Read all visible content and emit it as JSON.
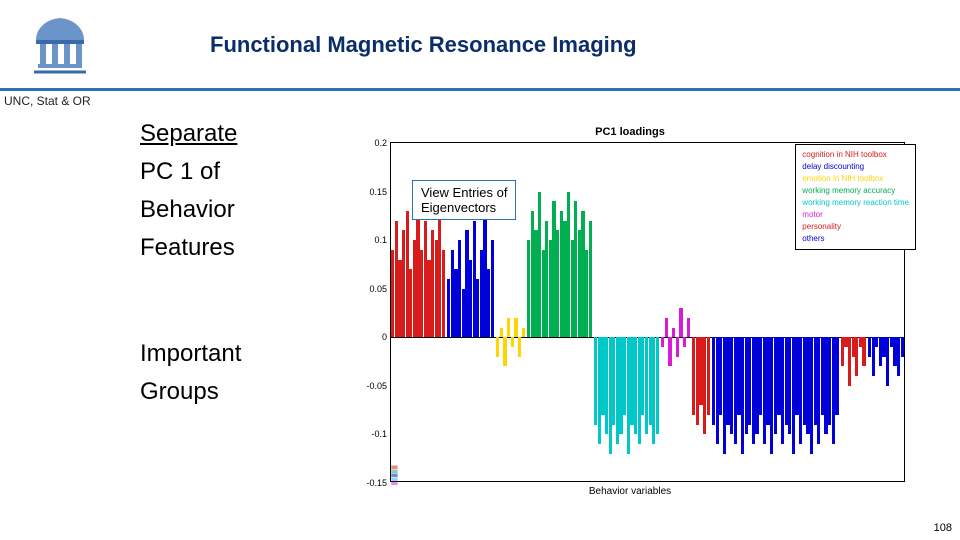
{
  "header": {
    "title": "Functional Magnetic Resonance Imaging",
    "subhead": "UNC, Stat & OR",
    "title_color": "#0b2e6b",
    "rule_color": "#2a6fb8"
  },
  "left_text": {
    "l1": "Separate",
    "l2": "PC 1 of",
    "l3": "Behavior",
    "l4": "Features",
    "l5": "Important",
    "l6": "Groups"
  },
  "chart": {
    "type": "bar",
    "title": "PC1 loadings",
    "xlabel": "Behavior variables",
    "ylim": [
      -0.15,
      0.2
    ],
    "yticks": [
      0.2,
      0.15,
      0.1,
      0.05,
      0,
      -0.05,
      -0.1,
      -0.15
    ],
    "background_color": "#ffffff",
    "grid_color": "#000000",
    "annotation": {
      "line1": "View Entries of",
      "line2": "Eigenvectors"
    },
    "legend": [
      {
        "label": "cognition in NIH toolbox",
        "color": "#d81b1b"
      },
      {
        "label": "delay discounting",
        "color": "#0000d8"
      },
      {
        "label": "emotion in NIH toolbox",
        "color": "#ffd400"
      },
      {
        "label": "working memory accuracy",
        "color": "#00b050"
      },
      {
        "label": "working memory reaction time",
        "color": "#00c8c8"
      },
      {
        "label": "motor",
        "color": "#d81bd8"
      },
      {
        "label": "personality",
        "color": "#d81b1b"
      },
      {
        "label": "others",
        "color": "#0000d8"
      }
    ],
    "series": [
      {
        "color": "#d81b1b",
        "values": [
          0.09,
          0.12,
          0.08,
          0.11,
          0.13,
          0.07,
          0.1,
          0.14,
          0.09,
          0.12,
          0.08,
          0.11,
          0.1,
          0.13,
          0.09
        ]
      },
      {
        "color": "#0000d8",
        "values": [
          0.06,
          0.09,
          0.07,
          0.1,
          0.05,
          0.11,
          0.08,
          0.12,
          0.06,
          0.09,
          0.14,
          0.07,
          0.1
        ]
      },
      {
        "color": "#ffd400",
        "values": [
          -0.02,
          0.01,
          -0.03,
          0.02,
          -0.01,
          0.02,
          -0.02,
          0.01
        ]
      },
      {
        "color": "#00b050",
        "values": [
          0.1,
          0.13,
          0.11,
          0.15,
          0.09,
          0.12,
          0.1,
          0.14,
          0.11,
          0.13,
          0.12,
          0.15,
          0.1,
          0.14,
          0.11,
          0.13,
          0.09,
          0.12
        ]
      },
      {
        "color": "#00c8c8",
        "values": [
          -0.09,
          -0.11,
          -0.08,
          -0.1,
          -0.12,
          -0.09,
          -0.11,
          -0.1,
          -0.08,
          -0.12,
          -0.09,
          -0.1,
          -0.11,
          -0.08,
          -0.1,
          -0.09,
          -0.11,
          -0.1
        ]
      },
      {
        "color": "#d81bd8",
        "values": [
          -0.01,
          0.02,
          -0.03,
          0.01,
          -0.02,
          0.03,
          -0.01,
          0.02
        ]
      },
      {
        "color": "#d81b1b",
        "values": [
          -0.08,
          -0.09,
          -0.07,
          -0.1,
          -0.08
        ]
      },
      {
        "color": "#0000d8",
        "values": [
          -0.09,
          -0.11,
          -0.08,
          -0.12,
          -0.09,
          -0.1,
          -0.11,
          -0.08,
          -0.12,
          -0.1,
          -0.09,
          -0.11,
          -0.1,
          -0.08,
          -0.11,
          -0.09,
          -0.12,
          -0.1,
          -0.08,
          -0.11,
          -0.09,
          -0.1,
          -0.12,
          -0.08,
          -0.11,
          -0.09,
          -0.1,
          -0.12,
          -0.09,
          -0.11,
          -0.08,
          -0.1,
          -0.09,
          -0.11,
          -0.08
        ]
      },
      {
        "color": "#d81b1b",
        "values": [
          -0.03,
          -0.01,
          -0.05,
          -0.02,
          -0.04,
          -0.01,
          -0.03
        ]
      },
      {
        "color": "#0000d8",
        "values": [
          -0.02,
          -0.04,
          -0.01,
          -0.03,
          -0.02,
          -0.05,
          -0.01,
          -0.03,
          -0.04,
          -0.02
        ]
      }
    ],
    "jitter_rows": 5
  },
  "page_number": "108",
  "logo": {
    "dome_color": "#6b94c8",
    "accent_color": "#3a6aa8"
  }
}
